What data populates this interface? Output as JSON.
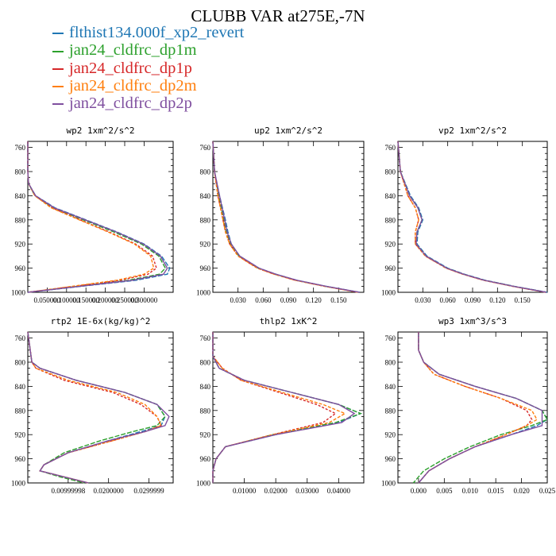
{
  "title": "CLUBB VAR at275E,-7N",
  "legend": [
    {
      "name": "flthist134.000f_xp2_revert",
      "color": "#1f77b4"
    },
    {
      "name": "jan24_cldfrc_dp1m",
      "color": "#2ca02c"
    },
    {
      "name": "jan24_cldfrc_dp1p",
      "color": "#d62728"
    },
    {
      "name": "jan24_cldfrc_dp2m",
      "color": "#ff7f0e"
    },
    {
      "name": "jan24_cldfrc_dp2p",
      "color": "#7f4f9f"
    }
  ],
  "chart_data": [
    {
      "type": "line",
      "title": "wp2  1xm^2/s^2",
      "ylim": [
        1000,
        750
      ],
      "yticks": [
        "760",
        "800",
        "840",
        "880",
        "920",
        "960",
        "1000"
      ],
      "xlim": [
        0,
        0.375
      ],
      "xticks": [
        0.05,
        0.1,
        0.15,
        0.2,
        0.25,
        0.3
      ],
      "xticklabels": [
        "0.050000",
        "0.100000",
        "0.150000",
        "0.200000",
        "0.250000",
        "0.300000"
      ],
      "y": [
        750,
        800,
        820,
        840,
        860,
        880,
        900,
        920,
        940,
        960,
        970,
        980,
        990,
        1000
      ],
      "series": [
        {
          "values": [
            0.0,
            0.0,
            0.002,
            0.02,
            0.07,
            0.15,
            0.23,
            0.3,
            0.345,
            0.366,
            0.36,
            0.28,
            0.14,
            0.0
          ]
        },
        {
          "values": [
            0.0,
            0.0,
            0.002,
            0.018,
            0.065,
            0.143,
            0.222,
            0.293,
            0.338,
            0.355,
            0.34,
            0.26,
            0.13,
            0.0
          ]
        },
        {
          "values": [
            0.0,
            0.0,
            0.002,
            0.019,
            0.062,
            0.135,
            0.21,
            0.278,
            0.322,
            0.332,
            0.31,
            0.24,
            0.12,
            0.0
          ]
        },
        {
          "values": [
            0.0,
            0.0,
            0.002,
            0.018,
            0.06,
            0.133,
            0.207,
            0.275,
            0.317,
            0.325,
            0.3,
            0.23,
            0.115,
            0.0
          ]
        },
        {
          "values": [
            0.0,
            0.0,
            0.002,
            0.02,
            0.068,
            0.148,
            0.228,
            0.298,
            0.342,
            0.36,
            0.35,
            0.27,
            0.135,
            0.0
          ]
        }
      ]
    },
    {
      "type": "line",
      "title": "up2  1xm^2/s^2",
      "ylim": [
        1000,
        750
      ],
      "yticks": [
        "760",
        "800",
        "840",
        "880",
        "920",
        "960",
        "1000"
      ],
      "xlim": [
        0,
        0.18
      ],
      "xticks": [
        0.03,
        0.06,
        0.09,
        0.12,
        0.15
      ],
      "xticklabels": [
        "0.030",
        "0.060",
        "0.090",
        "0.120",
        "0.150"
      ],
      "y": [
        750,
        800,
        840,
        880,
        900,
        920,
        940,
        960,
        970,
        980,
        990,
        1000
      ],
      "series": [
        {
          "values": [
            0.0,
            0.002,
            0.008,
            0.015,
            0.018,
            0.022,
            0.032,
            0.055,
            0.075,
            0.1,
            0.135,
            0.175
          ]
        },
        {
          "values": [
            0.0,
            0.002,
            0.007,
            0.013,
            0.016,
            0.021,
            0.031,
            0.054,
            0.074,
            0.099,
            0.134,
            0.174
          ]
        },
        {
          "values": [
            0.0,
            0.002,
            0.006,
            0.012,
            0.015,
            0.02,
            0.03,
            0.053,
            0.073,
            0.098,
            0.133,
            0.173
          ]
        },
        {
          "values": [
            0.0,
            0.002,
            0.006,
            0.012,
            0.015,
            0.02,
            0.03,
            0.053,
            0.073,
            0.098,
            0.133,
            0.173
          ]
        },
        {
          "values": [
            0.0,
            0.002,
            0.008,
            0.014,
            0.017,
            0.022,
            0.032,
            0.055,
            0.075,
            0.1,
            0.135,
            0.175
          ]
        }
      ]
    },
    {
      "type": "line",
      "title": "vp2  1xm^2/s^2",
      "ylim": [
        1000,
        750
      ],
      "yticks": [
        "760",
        "800",
        "840",
        "880",
        "920",
        "960",
        "1000"
      ],
      "xlim": [
        0,
        0.18
      ],
      "xticks": [
        0.03,
        0.06,
        0.09,
        0.12,
        0.15
      ],
      "xticklabels": [
        "0.030",
        "0.060",
        "0.090",
        "0.120",
        "0.150"
      ],
      "y": [
        750,
        800,
        840,
        860,
        880,
        900,
        920,
        940,
        960,
        970,
        980,
        990,
        1000
      ],
      "series": [
        {
          "values": [
            0.0,
            0.003,
            0.015,
            0.025,
            0.03,
            0.024,
            0.023,
            0.035,
            0.06,
            0.08,
            0.105,
            0.14,
            0.18
          ]
        },
        {
          "values": [
            0.0,
            0.003,
            0.014,
            0.024,
            0.029,
            0.023,
            0.022,
            0.034,
            0.059,
            0.079,
            0.104,
            0.139,
            0.179
          ]
        },
        {
          "values": [
            0.0,
            0.003,
            0.012,
            0.021,
            0.025,
            0.021,
            0.021,
            0.033,
            0.058,
            0.078,
            0.103,
            0.138,
            0.178
          ]
        },
        {
          "values": [
            0.0,
            0.003,
            0.012,
            0.021,
            0.025,
            0.021,
            0.021,
            0.033,
            0.058,
            0.078,
            0.103,
            0.138,
            0.178
          ]
        },
        {
          "values": [
            0.0,
            0.003,
            0.014,
            0.024,
            0.029,
            0.023,
            0.022,
            0.034,
            0.059,
            0.079,
            0.104,
            0.139,
            0.179
          ]
        }
      ]
    },
    {
      "type": "line",
      "title": "rtp2  1E-6x(kg/kg)^2",
      "ylim": [
        1000,
        750
      ],
      "yticks": [
        "760",
        "800",
        "840",
        "880",
        "920",
        "960",
        "1000"
      ],
      "xlim": [
        0,
        0.036
      ],
      "xticks": [
        0.01,
        0.02,
        0.03
      ],
      "xticklabels": [
        "0.00999998",
        "0.0200000",
        "0.0299999"
      ],
      "y": [
        750,
        800,
        810,
        830,
        850,
        870,
        890,
        905,
        915,
        930,
        950,
        970,
        980,
        990,
        1000
      ],
      "series": [
        {
          "values": [
            0.0,
            0.001,
            0.003,
            0.012,
            0.024,
            0.032,
            0.034,
            0.033,
            0.028,
            0.02,
            0.01,
            0.004,
            0.003,
            0.009,
            0.015
          ]
        },
        {
          "values": [
            0.0,
            0.001,
            0.003,
            0.012,
            0.024,
            0.032,
            0.034,
            0.032,
            0.026,
            0.018,
            0.009,
            0.004,
            0.003,
            0.008,
            0.014
          ]
        },
        {
          "values": [
            0.0,
            0.001,
            0.002,
            0.009,
            0.021,
            0.028,
            0.032,
            0.033,
            0.029,
            0.021,
            0.01,
            0.004,
            0.003,
            0.009,
            0.015
          ]
        },
        {
          "values": [
            0.0,
            0.001,
            0.002,
            0.01,
            0.022,
            0.029,
            0.032,
            0.033,
            0.029,
            0.021,
            0.01,
            0.004,
            0.003,
            0.009,
            0.015
          ]
        },
        {
          "values": [
            0.0,
            0.001,
            0.003,
            0.012,
            0.024,
            0.032,
            0.035,
            0.034,
            0.029,
            0.02,
            0.01,
            0.004,
            0.003,
            0.009,
            0.015
          ]
        }
      ]
    },
    {
      "type": "line",
      "title": "thlp2  1xK^2",
      "ylim": [
        1000,
        750
      ],
      "yticks": [
        "760",
        "800",
        "840",
        "880",
        "920",
        "960",
        "1000"
      ],
      "xlim": [
        0,
        0.048
      ],
      "xticks": [
        0.01,
        0.02,
        0.03,
        0.04
      ],
      "xticklabels": [
        "0.01000",
        "0.02000",
        "0.03000",
        "0.04000"
      ],
      "y": [
        750,
        790,
        810,
        830,
        850,
        870,
        885,
        900,
        920,
        940,
        960,
        980,
        1000
      ],
      "series": [
        {
          "values": [
            0.0,
            0.0,
            0.002,
            0.01,
            0.025,
            0.04,
            0.047,
            0.04,
            0.02,
            0.004,
            0.001,
            0.0,
            0.0
          ]
        },
        {
          "values": [
            0.0,
            0.0,
            0.002,
            0.01,
            0.025,
            0.04,
            0.047,
            0.039,
            0.019,
            0.004,
            0.001,
            0.0,
            0.0
          ]
        },
        {
          "values": [
            0.0,
            0.0,
            0.003,
            0.009,
            0.021,
            0.033,
            0.039,
            0.035,
            0.019,
            0.004,
            0.001,
            0.0,
            0.0
          ]
        },
        {
          "values": [
            0.0,
            0.0,
            0.003,
            0.009,
            0.022,
            0.035,
            0.042,
            0.037,
            0.019,
            0.004,
            0.001,
            0.0,
            0.0
          ]
        },
        {
          "values": [
            0.0,
            0.0,
            0.002,
            0.01,
            0.025,
            0.04,
            0.045,
            0.041,
            0.02,
            0.004,
            0.001,
            0.0,
            0.0
          ]
        }
      ]
    },
    {
      "type": "line",
      "title": "wp3  1xm^3/s^3",
      "ylim": [
        1000,
        750
      ],
      "yticks": [
        "760",
        "800",
        "840",
        "880",
        "920",
        "960",
        "1000"
      ],
      "xlim": [
        -0.004,
        0.025
      ],
      "xticks": [
        0.0,
        0.005,
        0.01,
        0.015,
        0.02,
        0.025
      ],
      "xticklabels": [
        "0.000",
        "0.005",
        "0.010",
        "0.015",
        "0.020",
        "0.025"
      ],
      "y": [
        750,
        780,
        800,
        820,
        840,
        860,
        880,
        895,
        905,
        920,
        940,
        960,
        980,
        1000
      ],
      "series": [
        {
          "values": [
            0.0,
            0.0,
            0.001,
            0.004,
            0.011,
            0.019,
            0.024,
            0.025,
            0.023,
            0.018,
            0.011,
            0.006,
            0.002,
            0.0
          ]
        },
        {
          "values": [
            0.0,
            0.0,
            0.001,
            0.004,
            0.011,
            0.019,
            0.024,
            0.025,
            0.022,
            0.016,
            0.01,
            0.005,
            0.001,
            -0.001
          ]
        },
        {
          "values": [
            0.0,
            0.0,
            0.001,
            0.003,
            0.009,
            0.016,
            0.021,
            0.022,
            0.021,
            0.017,
            0.011,
            0.006,
            0.002,
            0.0
          ]
        },
        {
          "values": [
            0.0,
            0.0,
            0.001,
            0.003,
            0.009,
            0.016,
            0.022,
            0.023,
            0.021,
            0.017,
            0.011,
            0.006,
            0.002,
            0.0
          ]
        },
        {
          "values": [
            0.0,
            0.0,
            0.001,
            0.004,
            0.011,
            0.019,
            0.024,
            0.024,
            0.024,
            0.018,
            0.011,
            0.006,
            0.002,
            0.0
          ]
        }
      ]
    }
  ]
}
